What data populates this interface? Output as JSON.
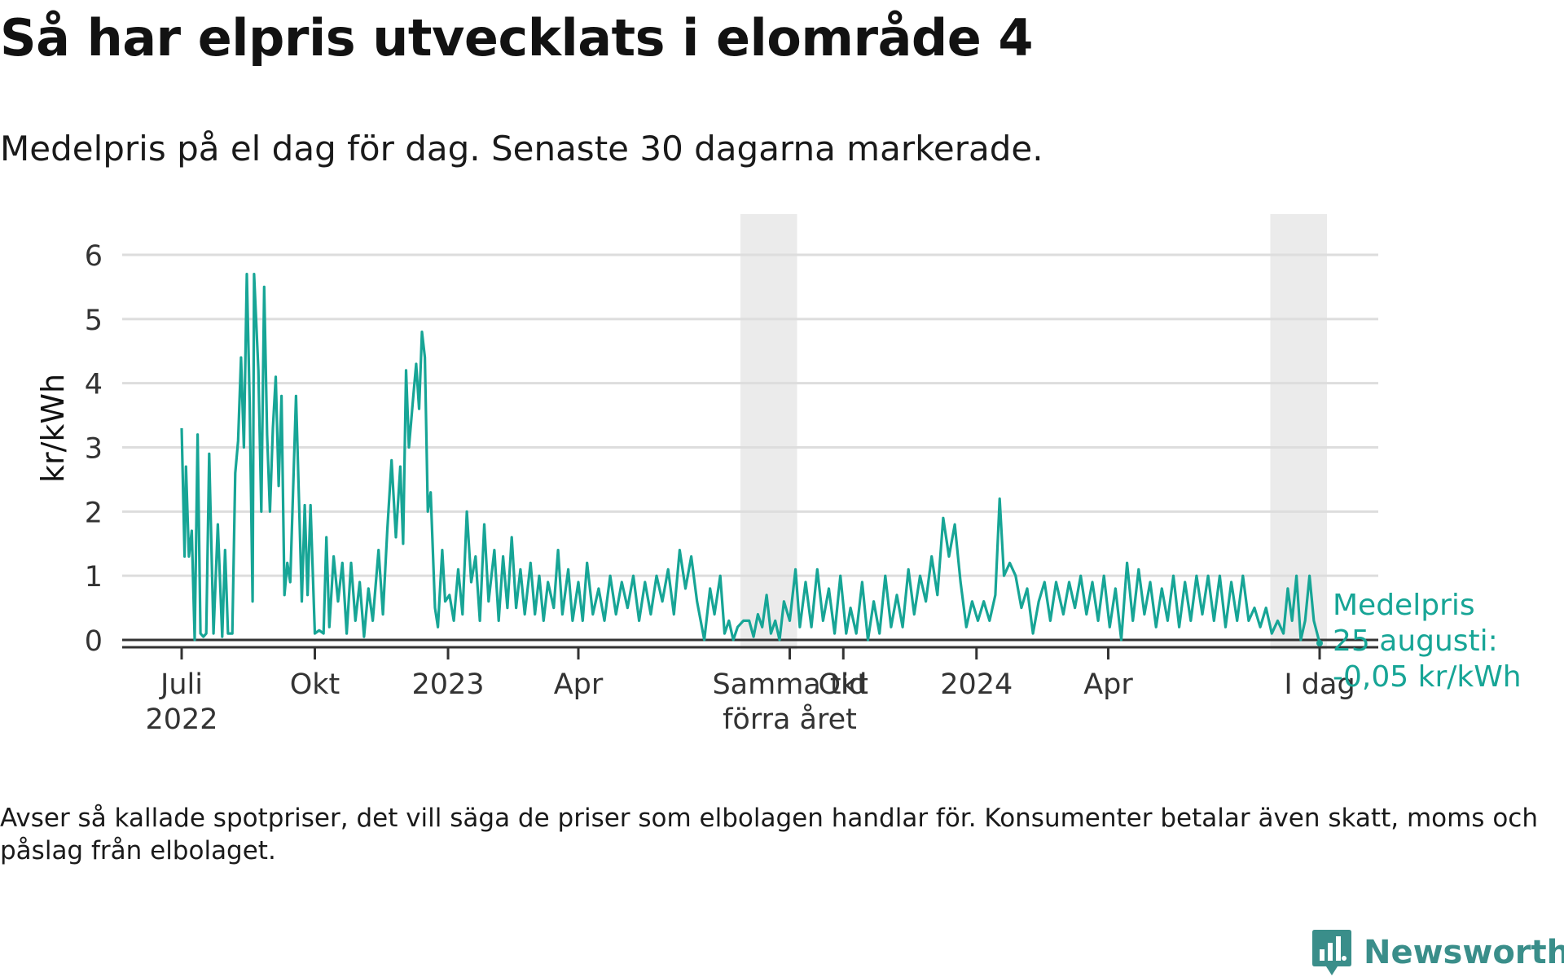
{
  "title": "Så har elpris utvecklats i elområde 4",
  "subtitle": "Medelpris på el dag för dag.  Senaste 30 dagarna markerade.",
  "footnote": "Avser så kallade spotpriser, det vill säga de priser som elbolagen handlar för. Konsumenter betalar även skatt, moms och påslag från elbolaget.",
  "logo": {
    "text": "Newsworthy",
    "icon": "newsworthy-logo-icon"
  },
  "colors": {
    "line": "#17a596",
    "grid": "#dddddd",
    "zero": "#333333",
    "highlight": "#ebebeb",
    "annotation": "#17a596"
  },
  "chart_data": {
    "type": "line",
    "title": "Så har elpris utvecklats i elområde 4",
    "subtitle": "Medelpris på el dag för dag.  Senaste 30 dagarna markerade.",
    "xlabel": "",
    "ylabel": "kr/kWh",
    "ylim": [
      0,
      6
    ],
    "xlim": [
      "2022-07-01",
      "2024-08-25"
    ],
    "yticks": [
      0,
      1,
      2,
      3,
      4,
      5,
      6
    ],
    "xticks": [
      {
        "date": "2022-07-01",
        "label": [
          "Juli",
          "2022"
        ]
      },
      {
        "date": "2022-10-01",
        "label": [
          "Okt"
        ]
      },
      {
        "date": "2023-01-01",
        "label": [
          "2023"
        ]
      },
      {
        "date": "2023-04-01",
        "label": [
          "Apr"
        ]
      },
      {
        "date": "2023-08-25",
        "label": [
          "Samma tid",
          "förra året"
        ]
      },
      {
        "date": "2023-10-01",
        "label": [
          "Okt"
        ]
      },
      {
        "date": "2024-01-01",
        "label": [
          "2024"
        ]
      },
      {
        "date": "2024-04-01",
        "label": [
          "Apr"
        ]
      },
      {
        "date": "2024-08-25",
        "label": [
          "I dag"
        ]
      }
    ],
    "highlight_periods": [
      [
        "2023-07-27",
        "2023-08-25"
      ],
      [
        "2024-07-27",
        "2024-08-25"
      ]
    ],
    "grid": true,
    "annotation": {
      "lines": [
        "Medelpris",
        "25 augusti:",
        "-0,05 kr/kWh"
      ],
      "date": "2024-08-25",
      "value": -0.05
    },
    "series": [
      {
        "points": [
          [
            "2022-07-01",
            3.3
          ],
          [
            "2022-07-03",
            1.3
          ],
          [
            "2022-07-04",
            2.7
          ],
          [
            "2022-07-06",
            1.3
          ],
          [
            "2022-07-08",
            1.7
          ],
          [
            "2022-07-10",
            0.0
          ],
          [
            "2022-07-12",
            3.2
          ],
          [
            "2022-07-14",
            0.1
          ],
          [
            "2022-07-16",
            0.05
          ],
          [
            "2022-07-18",
            0.1
          ],
          [
            "2022-07-20",
            2.9
          ],
          [
            "2022-07-23",
            0.1
          ],
          [
            "2022-07-26",
            1.8
          ],
          [
            "2022-07-29",
            0.05
          ],
          [
            "2022-07-31",
            1.4
          ],
          [
            "2022-08-02",
            0.1
          ],
          [
            "2022-08-05",
            0.1
          ],
          [
            "2022-08-07",
            2.6
          ],
          [
            "2022-08-09",
            3.1
          ],
          [
            "2022-08-11",
            4.4
          ],
          [
            "2022-08-13",
            3.0
          ],
          [
            "2022-08-15",
            5.7
          ],
          [
            "2022-08-17",
            3.7
          ],
          [
            "2022-08-19",
            0.6
          ],
          [
            "2022-08-20",
            5.7
          ],
          [
            "2022-08-23",
            4.2
          ],
          [
            "2022-08-25",
            2.0
          ],
          [
            "2022-08-27",
            5.5
          ],
          [
            "2022-08-29",
            3.2
          ],
          [
            "2022-08-31",
            2.0
          ],
          [
            "2022-09-02",
            3.3
          ],
          [
            "2022-09-04",
            4.1
          ],
          [
            "2022-09-06",
            2.4
          ],
          [
            "2022-09-08",
            3.8
          ],
          [
            "2022-09-10",
            0.7
          ],
          [
            "2022-09-12",
            1.2
          ],
          [
            "2022-09-14",
            0.9
          ],
          [
            "2022-09-18",
            3.8
          ],
          [
            "2022-09-20",
            2.2
          ],
          [
            "2022-09-22",
            0.6
          ],
          [
            "2022-09-24",
            2.1
          ],
          [
            "2022-09-26",
            0.7
          ],
          [
            "2022-09-28",
            2.1
          ],
          [
            "2022-10-01",
            0.1
          ],
          [
            "2022-10-04",
            0.15
          ],
          [
            "2022-10-07",
            0.1
          ],
          [
            "2022-10-09",
            1.6
          ],
          [
            "2022-10-11",
            0.2
          ],
          [
            "2022-10-14",
            1.3
          ],
          [
            "2022-10-17",
            0.6
          ],
          [
            "2022-10-20",
            1.2
          ],
          [
            "2022-10-23",
            0.1
          ],
          [
            "2022-10-26",
            1.2
          ],
          [
            "2022-10-29",
            0.3
          ],
          [
            "2022-11-01",
            0.9
          ],
          [
            "2022-11-04",
            0.05
          ],
          [
            "2022-11-07",
            0.8
          ],
          [
            "2022-11-10",
            0.3
          ],
          [
            "2022-11-14",
            1.4
          ],
          [
            "2022-11-17",
            0.4
          ],
          [
            "2022-11-20",
            1.7
          ],
          [
            "2022-11-23",
            2.8
          ],
          [
            "2022-11-26",
            1.6
          ],
          [
            "2022-11-29",
            2.7
          ],
          [
            "2022-12-01",
            1.5
          ],
          [
            "2022-12-03",
            4.2
          ],
          [
            "2022-12-05",
            3.0
          ],
          [
            "2022-12-08",
            3.8
          ],
          [
            "2022-12-10",
            4.3
          ],
          [
            "2022-12-12",
            3.6
          ],
          [
            "2022-12-14",
            4.8
          ],
          [
            "2022-12-16",
            4.4
          ],
          [
            "2022-12-18",
            2.0
          ],
          [
            "2022-12-20",
            2.3
          ],
          [
            "2022-12-23",
            0.5
          ],
          [
            "2022-12-25",
            0.2
          ],
          [
            "2022-12-28",
            1.4
          ],
          [
            "2022-12-30",
            0.6
          ],
          [
            "2023-01-02",
            0.7
          ],
          [
            "2023-01-05",
            0.3
          ],
          [
            "2023-01-08",
            1.1
          ],
          [
            "2023-01-11",
            0.4
          ],
          [
            "2023-01-14",
            2.0
          ],
          [
            "2023-01-17",
            0.9
          ],
          [
            "2023-01-20",
            1.3
          ],
          [
            "2023-01-23",
            0.3
          ],
          [
            "2023-01-26",
            1.8
          ],
          [
            "2023-01-29",
            0.6
          ],
          [
            "2023-02-02",
            1.4
          ],
          [
            "2023-02-05",
            0.3
          ],
          [
            "2023-02-08",
            1.3
          ],
          [
            "2023-02-11",
            0.5
          ],
          [
            "2023-02-14",
            1.6
          ],
          [
            "2023-02-17",
            0.5
          ],
          [
            "2023-02-20",
            1.1
          ],
          [
            "2023-02-23",
            0.4
          ],
          [
            "2023-02-27",
            1.2
          ],
          [
            "2023-03-02",
            0.4
          ],
          [
            "2023-03-05",
            1.0
          ],
          [
            "2023-03-08",
            0.3
          ],
          [
            "2023-03-11",
            0.9
          ],
          [
            "2023-03-15",
            0.5
          ],
          [
            "2023-03-18",
            1.4
          ],
          [
            "2023-03-21",
            0.4
          ],
          [
            "2023-03-25",
            1.1
          ],
          [
            "2023-03-28",
            0.3
          ],
          [
            "2023-04-01",
            0.9
          ],
          [
            "2023-04-04",
            0.3
          ],
          [
            "2023-04-07",
            1.2
          ],
          [
            "2023-04-11",
            0.4
          ],
          [
            "2023-04-15",
            0.8
          ],
          [
            "2023-04-19",
            0.3
          ],
          [
            "2023-04-23",
            1.0
          ],
          [
            "2023-04-27",
            0.4
          ],
          [
            "2023-05-01",
            0.9
          ],
          [
            "2023-05-05",
            0.5
          ],
          [
            "2023-05-09",
            1.0
          ],
          [
            "2023-05-13",
            0.3
          ],
          [
            "2023-05-17",
            0.9
          ],
          [
            "2023-05-21",
            0.4
          ],
          [
            "2023-05-25",
            1.0
          ],
          [
            "2023-05-29",
            0.6
          ],
          [
            "2023-06-02",
            1.1
          ],
          [
            "2023-06-06",
            0.4
          ],
          [
            "2023-06-10",
            1.4
          ],
          [
            "2023-06-14",
            0.8
          ],
          [
            "2023-06-18",
            1.3
          ],
          [
            "2023-06-22",
            0.6
          ],
          [
            "2023-06-27",
            0.0
          ],
          [
            "2023-07-01",
            0.8
          ],
          [
            "2023-07-04",
            0.4
          ],
          [
            "2023-07-08",
            1.0
          ],
          [
            "2023-07-11",
            0.1
          ],
          [
            "2023-07-14",
            0.3
          ],
          [
            "2023-07-17",
            0.0
          ],
          [
            "2023-07-20",
            0.2
          ],
          [
            "2023-07-24",
            0.3
          ],
          [
            "2023-07-28",
            0.3
          ],
          [
            "2023-07-31",
            0.05
          ],
          [
            "2023-08-03",
            0.4
          ],
          [
            "2023-08-06",
            0.2
          ],
          [
            "2023-08-09",
            0.7
          ],
          [
            "2023-08-12",
            0.1
          ],
          [
            "2023-08-15",
            0.3
          ],
          [
            "2023-08-18",
            0.0
          ],
          [
            "2023-08-21",
            0.6
          ],
          [
            "2023-08-25",
            0.3
          ],
          [
            "2023-08-29",
            1.1
          ],
          [
            "2023-09-01",
            0.2
          ],
          [
            "2023-09-05",
            0.9
          ],
          [
            "2023-09-09",
            0.2
          ],
          [
            "2023-09-13",
            1.1
          ],
          [
            "2023-09-17",
            0.3
          ],
          [
            "2023-09-21",
            0.8
          ],
          [
            "2023-09-25",
            0.1
          ],
          [
            "2023-09-29",
            1.0
          ],
          [
            "2023-10-03",
            0.1
          ],
          [
            "2023-10-06",
            0.5
          ],
          [
            "2023-10-10",
            0.1
          ],
          [
            "2023-10-14",
            0.9
          ],
          [
            "2023-10-18",
            0.0
          ],
          [
            "2023-10-22",
            0.6
          ],
          [
            "2023-10-26",
            0.1
          ],
          [
            "2023-10-30",
            1.0
          ],
          [
            "2023-11-03",
            0.2
          ],
          [
            "2023-11-07",
            0.7
          ],
          [
            "2023-11-11",
            0.2
          ],
          [
            "2023-11-15",
            1.1
          ],
          [
            "2023-11-19",
            0.4
          ],
          [
            "2023-11-23",
            1.0
          ],
          [
            "2023-11-27",
            0.6
          ],
          [
            "2023-12-01",
            1.3
          ],
          [
            "2023-12-05",
            0.7
          ],
          [
            "2023-12-09",
            1.9
          ],
          [
            "2023-12-13",
            1.3
          ],
          [
            "2023-12-17",
            1.8
          ],
          [
            "2023-12-21",
            0.9
          ],
          [
            "2023-12-25",
            0.2
          ],
          [
            "2023-12-29",
            0.6
          ],
          [
            "2024-01-02",
            0.3
          ],
          [
            "2024-01-06",
            0.6
          ],
          [
            "2024-01-10",
            0.3
          ],
          [
            "2024-01-14",
            0.7
          ],
          [
            "2024-01-17",
            2.2
          ],
          [
            "2024-01-20",
            1.0
          ],
          [
            "2024-01-24",
            1.2
          ],
          [
            "2024-01-28",
            1.0
          ],
          [
            "2024-02-01",
            0.5
          ],
          [
            "2024-02-05",
            0.8
          ],
          [
            "2024-02-09",
            0.1
          ],
          [
            "2024-02-13",
            0.6
          ],
          [
            "2024-02-17",
            0.9
          ],
          [
            "2024-02-21",
            0.3
          ],
          [
            "2024-02-25",
            0.9
          ],
          [
            "2024-03-01",
            0.4
          ],
          [
            "2024-03-05",
            0.9
          ],
          [
            "2024-03-09",
            0.5
          ],
          [
            "2024-03-13",
            1.0
          ],
          [
            "2024-03-17",
            0.4
          ],
          [
            "2024-03-21",
            0.9
          ],
          [
            "2024-03-25",
            0.3
          ],
          [
            "2024-03-29",
            1.0
          ],
          [
            "2024-04-02",
            0.2
          ],
          [
            "2024-04-06",
            0.8
          ],
          [
            "2024-04-10",
            0.0
          ],
          [
            "2024-04-14",
            1.2
          ],
          [
            "2024-04-18",
            0.3
          ],
          [
            "2024-04-22",
            1.1
          ],
          [
            "2024-04-26",
            0.4
          ],
          [
            "2024-04-30",
            0.9
          ],
          [
            "2024-05-04",
            0.2
          ],
          [
            "2024-05-08",
            0.8
          ],
          [
            "2024-05-12",
            0.3
          ],
          [
            "2024-05-16",
            1.0
          ],
          [
            "2024-05-20",
            0.2
          ],
          [
            "2024-05-24",
            0.9
          ],
          [
            "2024-05-28",
            0.3
          ],
          [
            "2024-06-01",
            1.0
          ],
          [
            "2024-06-05",
            0.4
          ],
          [
            "2024-06-09",
            1.0
          ],
          [
            "2024-06-13",
            0.3
          ],
          [
            "2024-06-17",
            1.0
          ],
          [
            "2024-06-21",
            0.2
          ],
          [
            "2024-06-25",
            0.9
          ],
          [
            "2024-06-29",
            0.3
          ],
          [
            "2024-07-03",
            1.0
          ],
          [
            "2024-07-07",
            0.3
          ],
          [
            "2024-07-11",
            0.5
          ],
          [
            "2024-07-15",
            0.2
          ],
          [
            "2024-07-19",
            0.5
          ],
          [
            "2024-07-23",
            0.1
          ],
          [
            "2024-07-27",
            0.3
          ],
          [
            "2024-07-31",
            0.1
          ],
          [
            "2024-08-03",
            0.8
          ],
          [
            "2024-08-06",
            0.3
          ],
          [
            "2024-08-09",
            1.0
          ],
          [
            "2024-08-12",
            0.0
          ],
          [
            "2024-08-15",
            0.3
          ],
          [
            "2024-08-18",
            1.0
          ],
          [
            "2024-08-21",
            0.3
          ],
          [
            "2024-08-25",
            -0.05
          ]
        ]
      }
    ]
  }
}
